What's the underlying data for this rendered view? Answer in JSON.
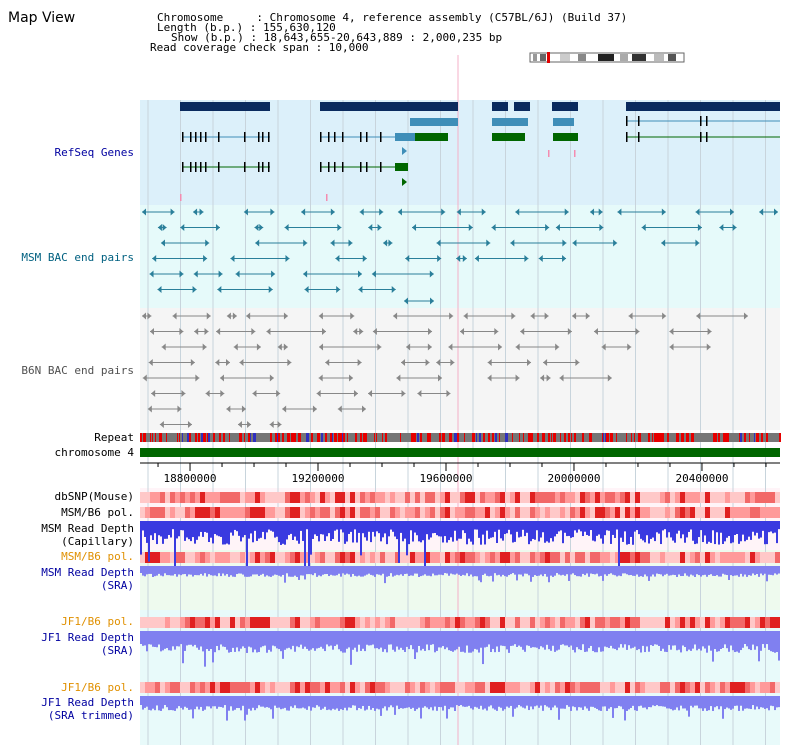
{
  "page": {
    "title": "Map View"
  },
  "info": {
    "chromosome": "Chromosome     : Chromosome 4, reference assembly (C57BL/6J) (Build 37)",
    "length": "Length (b.p.) : 155,630,120",
    "show": "Show (b.p.) : 18,643,655-20,643,889 : 2,000,235 bp",
    "coverage": "Read coverage check span : 10,000"
  },
  "tracks": {
    "refseq": "RefSeq Genes",
    "msm_bac": "MSM BAC end pairs",
    "b6n_bac": "B6N BAC end pairs",
    "repeat": "Repeat",
    "chromosome": "chromosome 4",
    "dbsnp": "dbSNP(Mouse)",
    "msm_pol": "MSM/B6 pol.",
    "msm_depth_cap_1": "MSM Read Depth",
    "msm_depth_cap_2": "(Capillary)",
    "msm_pol2": "MSM/B6 pol.",
    "msm_depth_sra_1": "MSM Read Depth",
    "msm_depth_sra_2": "(SRA)",
    "jf1_pol": "JF1/B6 pol.",
    "jf1_depth_1": "JF1 Read Depth",
    "jf1_depth_2": "(SRA)",
    "jf1_pol2": "JF1/B6 pol.",
    "jf1_trim_1": "JF1 Read Depth",
    "jf1_trim_2": "(SRA trimmed)"
  },
  "axis": {
    "range": [
      18643655,
      20643889
    ],
    "ticks": [
      "18800000",
      "19200000",
      "19600000",
      "20000000",
      "20400000"
    ]
  },
  "colors": {
    "refseq_bg": "#dcf0fa",
    "msm_bg": "#e6fafa",
    "b6n_bg": "#f5f5f5",
    "gene_dark": "#0a2a5e",
    "gene_mid": "#3f8eb8",
    "gene_green": "#006600",
    "bac_msm": "#2a7f9a",
    "bac_b6n": "#888888",
    "chrom_bar": "#006600",
    "depth_blue": "#3a3ae0",
    "depth_sra": "#8080f0"
  }
}
